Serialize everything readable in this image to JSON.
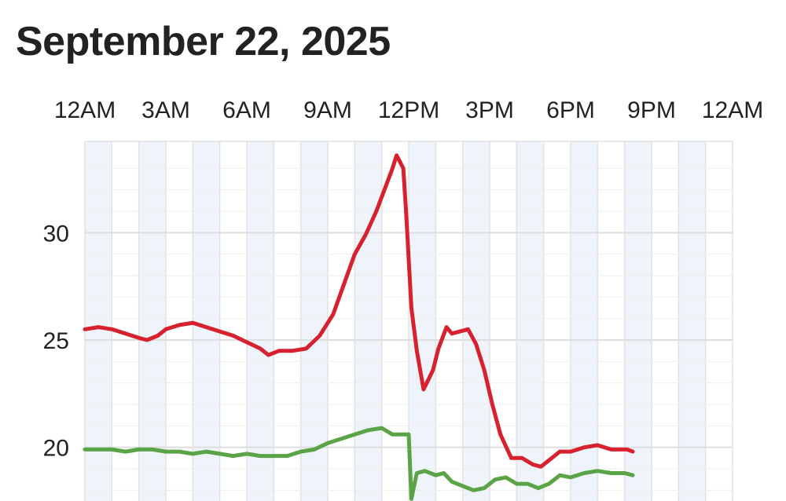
{
  "page": {
    "title": "September 22, 2025"
  },
  "chart_data": {
    "type": "line",
    "title": "September 22, 2025",
    "xlabel": "",
    "ylabel": "",
    "x_unit": "hour of day",
    "xlim": [
      0,
      24
    ],
    "ylim": [
      17.5,
      34
    ],
    "grid": true,
    "x_ticks": [
      {
        "hour": 0,
        "label": "12AM"
      },
      {
        "hour": 3,
        "label": "3AM"
      },
      {
        "hour": 6,
        "label": "6AM"
      },
      {
        "hour": 9,
        "label": "9AM"
      },
      {
        "hour": 12,
        "label": "12PM"
      },
      {
        "hour": 15,
        "label": "3PM"
      },
      {
        "hour": 18,
        "label": "6PM"
      },
      {
        "hour": 21,
        "label": "9PM"
      },
      {
        "hour": 24,
        "label": "12AM"
      }
    ],
    "y_ticks": [
      {
        "value": 20,
        "label": "20"
      },
      {
        "value": 25,
        "label": "25"
      },
      {
        "value": 30,
        "label": "30"
      }
    ],
    "series": [
      {
        "color": "#d7212f",
        "points": [
          [
            0.0,
            25.5
          ],
          [
            0.5,
            25.6
          ],
          [
            1.0,
            25.5
          ],
          [
            1.5,
            25.3
          ],
          [
            2.0,
            25.1
          ],
          [
            2.3,
            25.0
          ],
          [
            2.7,
            25.2
          ],
          [
            3.0,
            25.5
          ],
          [
            3.5,
            25.7
          ],
          [
            4.0,
            25.8
          ],
          [
            4.5,
            25.6
          ],
          [
            5.0,
            25.4
          ],
          [
            5.5,
            25.2
          ],
          [
            6.0,
            24.9
          ],
          [
            6.5,
            24.6
          ],
          [
            6.8,
            24.3
          ],
          [
            7.2,
            24.5
          ],
          [
            7.7,
            24.5
          ],
          [
            8.2,
            24.6
          ],
          [
            8.7,
            25.2
          ],
          [
            9.2,
            26.2
          ],
          [
            9.6,
            27.6
          ],
          [
            10.0,
            29.0
          ],
          [
            10.4,
            29.9
          ],
          [
            10.8,
            31.0
          ],
          [
            11.1,
            32.0
          ],
          [
            11.4,
            33.0
          ],
          [
            11.55,
            33.6
          ],
          [
            11.8,
            33.0
          ],
          [
            11.9,
            31.0
          ],
          [
            12.1,
            26.5
          ],
          [
            12.3,
            24.5
          ],
          [
            12.55,
            22.7
          ],
          [
            12.9,
            23.6
          ],
          [
            13.1,
            24.6
          ],
          [
            13.4,
            25.6
          ],
          [
            13.6,
            25.3
          ],
          [
            13.9,
            25.4
          ],
          [
            14.2,
            25.5
          ],
          [
            14.5,
            24.8
          ],
          [
            14.8,
            23.6
          ],
          [
            15.1,
            22.0
          ],
          [
            15.4,
            20.6
          ],
          [
            15.8,
            19.5
          ],
          [
            16.2,
            19.5
          ],
          [
            16.6,
            19.2
          ],
          [
            16.9,
            19.1
          ],
          [
            17.3,
            19.5
          ],
          [
            17.6,
            19.8
          ],
          [
            18.0,
            19.8
          ],
          [
            18.5,
            20.0
          ],
          [
            19.0,
            20.1
          ],
          [
            19.5,
            19.9
          ],
          [
            19.8,
            19.9
          ],
          [
            20.1,
            19.9
          ],
          [
            20.3,
            19.8
          ]
        ]
      },
      {
        "color": "#5aa447",
        "points": [
          [
            0.0,
            19.9
          ],
          [
            0.5,
            19.9
          ],
          [
            1.0,
            19.9
          ],
          [
            1.5,
            19.8
          ],
          [
            2.0,
            19.9
          ],
          [
            2.5,
            19.9
          ],
          [
            3.0,
            19.8
          ],
          [
            3.5,
            19.8
          ],
          [
            4.0,
            19.7
          ],
          [
            4.5,
            19.8
          ],
          [
            5.0,
            19.7
          ],
          [
            5.5,
            19.6
          ],
          [
            6.0,
            19.7
          ],
          [
            6.5,
            19.6
          ],
          [
            7.0,
            19.6
          ],
          [
            7.5,
            19.6
          ],
          [
            8.0,
            19.8
          ],
          [
            8.5,
            19.9
          ],
          [
            9.0,
            20.2
          ],
          [
            9.5,
            20.4
          ],
          [
            10.0,
            20.6
          ],
          [
            10.5,
            20.8
          ],
          [
            11.0,
            20.9
          ],
          [
            11.4,
            20.6
          ],
          [
            11.8,
            20.6
          ],
          [
            12.0,
            20.6
          ],
          [
            12.1,
            17.6
          ],
          [
            12.3,
            18.8
          ],
          [
            12.6,
            18.9
          ],
          [
            13.0,
            18.7
          ],
          [
            13.3,
            18.8
          ],
          [
            13.6,
            18.4
          ],
          [
            14.0,
            18.2
          ],
          [
            14.4,
            18.0
          ],
          [
            14.8,
            18.1
          ],
          [
            15.2,
            18.5
          ],
          [
            15.6,
            18.6
          ],
          [
            16.0,
            18.3
          ],
          [
            16.4,
            18.3
          ],
          [
            16.8,
            18.1
          ],
          [
            17.2,
            18.3
          ],
          [
            17.6,
            18.7
          ],
          [
            18.0,
            18.6
          ],
          [
            18.5,
            18.8
          ],
          [
            19.0,
            18.9
          ],
          [
            19.5,
            18.8
          ],
          [
            20.0,
            18.8
          ],
          [
            20.3,
            18.7
          ]
        ]
      }
    ]
  }
}
